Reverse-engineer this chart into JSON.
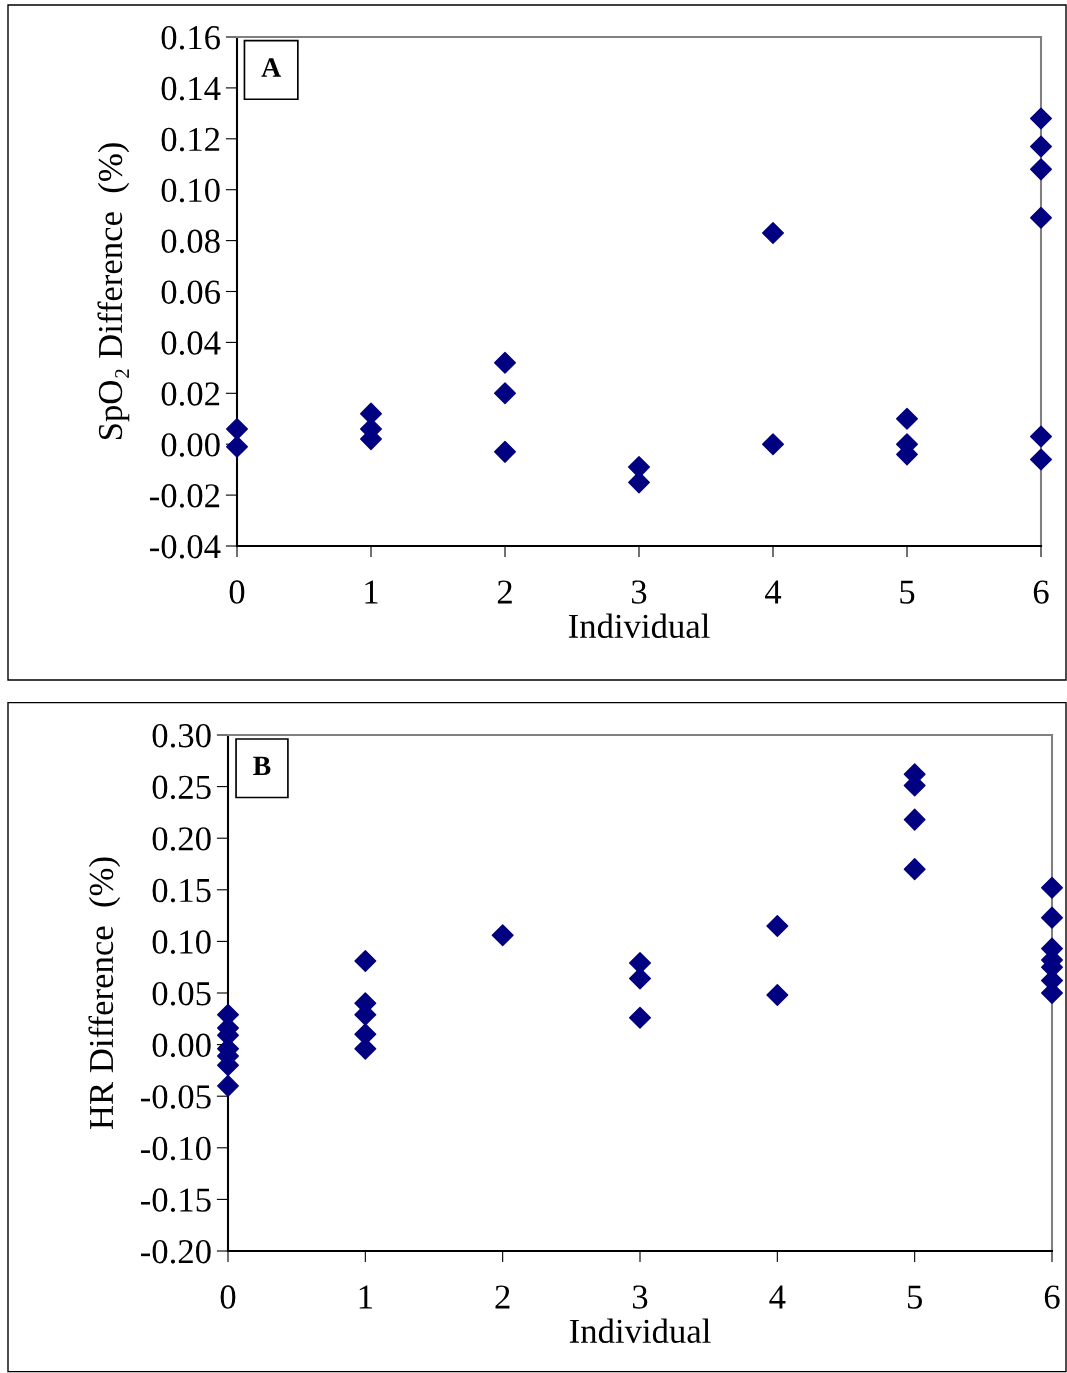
{
  "chart_data": [
    {
      "type": "scatter",
      "ylabel": "SpO₂ Difference  (%)",
      "xlabel": "Individual",
      "annotations": [
        "A"
      ],
      "marker": "diamond",
      "grid": false,
      "legend": false,
      "xlim": [
        0,
        6
      ],
      "xticks": [
        0,
        1,
        2,
        3,
        4,
        5,
        6
      ],
      "ylim": [
        -0.04,
        0.16
      ],
      "yticks": [
        {
          "value": -0.04,
          "label": "-0.04"
        },
        {
          "value": -0.02,
          "label": "-0.02"
        },
        {
          "value": 0,
          "label": "0.00"
        },
        {
          "value": 0.02,
          "label": "0.02"
        },
        {
          "value": 0.04,
          "label": "0.04"
        },
        {
          "value": 0.06,
          "label": "0.06"
        },
        {
          "value": 0.08,
          "label": "0.08"
        },
        {
          "value": 0.1,
          "label": "0.10"
        },
        {
          "value": 0.12,
          "label": "0.12"
        },
        {
          "value": 0.14,
          "label": "0.14"
        },
        {
          "value": 0.16,
          "label": "0.16"
        }
      ],
      "series": [
        {
          "color": "#000080",
          "x": [
            0,
            0,
            1,
            1,
            1,
            2,
            2,
            2,
            3,
            3,
            4,
            4,
            5,
            5,
            5,
            6,
            6,
            6,
            6,
            6,
            6
          ],
          "values": [
            0.006,
            -0.001,
            0.012,
            0.006,
            0.002,
            0.032,
            0.02,
            -0.003,
            -0.009,
            -0.015,
            0.083,
            0,
            0.01,
            0,
            -0.004,
            0.128,
            0.117,
            0.108,
            0.089,
            0.003,
            -0.006
          ]
        }
      ]
    },
    {
      "type": "scatter",
      "ylabel": "HR Difference  (%)",
      "xlabel": "Individual",
      "annotations": [
        "B"
      ],
      "marker": "diamond",
      "grid": false,
      "legend": false,
      "xlim": [
        0,
        6
      ],
      "xticks": [
        0,
        1,
        2,
        3,
        4,
        5,
        6
      ],
      "ylim": [
        -0.2,
        0.3
      ],
      "yticks": [
        {
          "value": -0.2,
          "label": "-0.20"
        },
        {
          "value": -0.15,
          "label": "-0.15"
        },
        {
          "value": -0.1,
          "label": "-0.10"
        },
        {
          "value": -0.05,
          "label": "-0.05"
        },
        {
          "value": 0,
          "label": "0.00"
        },
        {
          "value": 0.05,
          "label": "0.05"
        },
        {
          "value": 0.1,
          "label": "0.10"
        },
        {
          "value": 0.15,
          "label": "0.15"
        },
        {
          "value": 0.2,
          "label": "0.20"
        },
        {
          "value": 0.25,
          "label": "0.25"
        },
        {
          "value": 0.3,
          "label": "0.30"
        }
      ],
      "series": [
        {
          "color": "#000080",
          "x": [
            0,
            0,
            0,
            0,
            0,
            0,
            0,
            1,
            1,
            1,
            1,
            1,
            2,
            3,
            3,
            3,
            4,
            4,
            5,
            5,
            5,
            5,
            6,
            6,
            6,
            6,
            6,
            6,
            6
          ],
          "values": [
            0.029,
            0.016,
            0.009,
            -0.004,
            -0.011,
            -0.02,
            -0.04,
            0.081,
            0.04,
            0.029,
            0.01,
            -0.004,
            0.106,
            0.079,
            0.064,
            0.026,
            0.115,
            0.048,
            0.262,
            0.251,
            0.218,
            0.17,
            0.152,
            0.123,
            0.093,
            0.082,
            0.075,
            0.062,
            0.05
          ]
        }
      ]
    }
  ]
}
